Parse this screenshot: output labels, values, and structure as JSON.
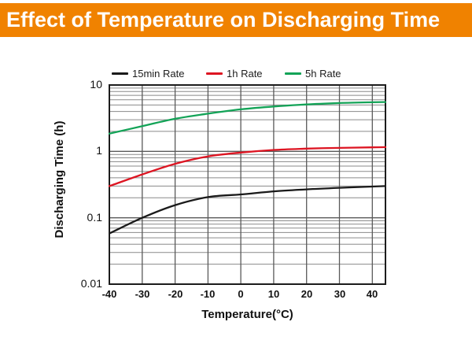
{
  "header": {
    "title": "Effect of Temperature on Discharging Time",
    "bg_color": "#f08200",
    "text_color": "#ffffff"
  },
  "chart_data": {
    "type": "line",
    "title": "Effect of Temperature on Discharging Time",
    "xlabel": "Temperature(°C)",
    "ylabel": "Discharging Time (h)",
    "legend_position": "top",
    "grid": {
      "minor_color": "#8a8a8a",
      "major_color": "#5a5a5a",
      "border_color": "#1c1c1c"
    },
    "x_axis": {
      "min": -40,
      "max": 44,
      "ticks": [
        -40,
        -30,
        -20,
        -10,
        0,
        10,
        20,
        30,
        40
      ]
    },
    "y_axis": {
      "scale": "log",
      "min": 0.01,
      "max": 10,
      "tick_labels": [
        "10",
        "1",
        "0.1",
        "0.01"
      ],
      "tick_values": [
        10,
        1,
        0.1,
        0.01
      ]
    },
    "x": [
      -40,
      -30,
      -20,
      -10,
      0,
      10,
      20,
      30,
      40,
      44
    ],
    "series": [
      {
        "name": "15min Rate",
        "color": "#1a1a1a",
        "values": [
          0.058,
          0.1,
          0.155,
          0.205,
          0.225,
          0.25,
          0.268,
          0.283,
          0.295,
          0.3
        ]
      },
      {
        "name": "1h Rate",
        "color": "#dd1522",
        "values": [
          0.3,
          0.45,
          0.65,
          0.84,
          0.96,
          1.05,
          1.1,
          1.13,
          1.15,
          1.16
        ]
      },
      {
        "name": "5h Rate",
        "color": "#13a357",
        "values": [
          1.85,
          2.4,
          3.1,
          3.7,
          4.3,
          4.75,
          5.1,
          5.35,
          5.5,
          5.55
        ]
      }
    ]
  }
}
